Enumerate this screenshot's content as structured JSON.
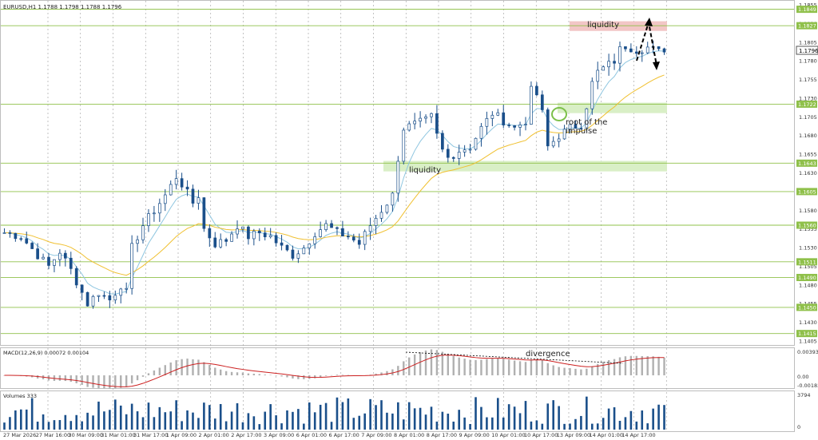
{
  "chart_data": {
    "type": "candlestick",
    "symbol_header": "EURUSD,H1  1.1788 1.1798 1.1788 1.1796",
    "price_axis": {
      "range": [
        1.1405,
        1.1855
      ],
      "ticks": [
        "1.1855",
        "1.1830",
        "1.1805",
        "1.1780",
        "1.1755",
        "1.1730",
        "1.1705",
        "1.1680",
        "1.1655",
        "1.1630",
        "1.1605",
        "1.1580",
        "1.1555",
        "1.1530",
        "1.1505",
        "1.1480",
        "1.1455",
        "1.1430",
        "1.1405"
      ],
      "current_price": "1.1796"
    },
    "levels": [
      {
        "price": 1.1849,
        "label": "1.1849"
      },
      {
        "price": 1.1827,
        "label": "1.1827"
      },
      {
        "price": 1.1722,
        "label": "1.1722"
      },
      {
        "price": 1.1643,
        "label": "1.1643"
      },
      {
        "price": 1.1605,
        "label": "1.1605"
      },
      {
        "price": 1.156,
        "label": "1.1560"
      },
      {
        "price": 1.1511,
        "label": "1.1511"
      },
      {
        "price": 1.149,
        "label": "1.1490"
      },
      {
        "price": 1.145,
        "label": "1.1450"
      },
      {
        "price": 1.1415,
        "label": "1.1415"
      }
    ],
    "time_labels": [
      "27 Mar 2026",
      "27 Mar 16:00",
      "30 Mar 09:00",
      "31 Mar 01:00",
      "31 Mar 17:00",
      "1 Apr 09:00",
      "2 Apr 01:00",
      "2 Apr 17:00",
      "3 Apr 09:00",
      "6 Apr 01:00",
      "6 Apr 17:00",
      "7 Apr 09:00",
      "8 Apr 01:00",
      "8 Apr 17:00",
      "9 Apr 09:00",
      "10 Apr 01:00",
      "10 Apr 17:00",
      "13 Apr 09:00",
      "14 Apr 01:00",
      "14 Apr 17:00"
    ],
    "price_path": [
      [
        0,
        1.155
      ],
      [
        3,
        1.1545
      ],
      [
        6,
        1.152
      ],
      [
        8,
        1.1505
      ],
      [
        10,
        1.1525
      ],
      [
        12,
        1.15
      ],
      [
        14,
        1.147
      ],
      [
        15,
        1.1455
      ],
      [
        17,
        1.147
      ],
      [
        19,
        1.146
      ],
      [
        21,
        1.148
      ],
      [
        22,
        1.147
      ],
      [
        23,
        1.153
      ],
      [
        25,
        1.156
      ],
      [
        27,
        1.158
      ],
      [
        29,
        1.16
      ],
      [
        31,
        1.1625
      ],
      [
        32,
        1.1615
      ],
      [
        34,
        1.159
      ],
      [
        35,
        1.16
      ],
      [
        36,
        1.1555
      ],
      [
        38,
        1.1535
      ],
      [
        40,
        1.154
      ],
      [
        42,
        1.156
      ],
      [
        44,
        1.1545
      ],
      [
        46,
        1.155
      ],
      [
        48,
        1.1545
      ],
      [
        50,
        1.153
      ],
      [
        52,
        1.152
      ],
      [
        54,
        1.153
      ],
      [
        56,
        1.155
      ],
      [
        58,
        1.156
      ],
      [
        60,
        1.155
      ],
      [
        62,
        1.1545
      ],
      [
        64,
        1.1535
      ],
      [
        66,
        1.156
      ],
      [
        68,
        1.158
      ],
      [
        70,
        1.16
      ],
      [
        71,
        1.165
      ],
      [
        72,
        1.169
      ],
      [
        74,
        1.1695
      ],
      [
        76,
        1.17
      ],
      [
        77,
        1.1705
      ],
      [
        78,
        1.168
      ],
      [
        79,
        1.166
      ],
      [
        80,
        1.165
      ],
      [
        82,
        1.166
      ],
      [
        84,
        1.1665
      ],
      [
        86,
        1.169
      ],
      [
        88,
        1.171
      ],
      [
        90,
        1.17
      ],
      [
        92,
        1.169
      ],
      [
        94,
        1.17
      ],
      [
        95,
        1.174
      ],
      [
        96,
        1.1735
      ],
      [
        97,
        1.171
      ],
      [
        98,
        1.1665
      ],
      [
        100,
        1.168
      ],
      [
        102,
        1.169
      ],
      [
        104,
        1.1695
      ],
      [
        105,
        1.172
      ],
      [
        106,
        1.175
      ],
      [
        107,
        1.1765
      ],
      [
        108,
        1.177
      ],
      [
        110,
        1.178
      ],
      [
        111,
        1.1795
      ],
      [
        112,
        1.18
      ],
      [
        114,
        1.1795
      ],
      [
        116,
        1.1798
      ],
      [
        118,
        1.1792
      ],
      [
        119,
        1.1796
      ]
    ],
    "volume_axis": {
      "max": 3794,
      "ticks": [
        "3794",
        "0"
      ]
    },
    "macd": {
      "title": "MACD(12,26,9) 0.00072 0.00104",
      "axis_ticks": [
        "0.00393",
        "0.00",
        "-0.00183"
      ]
    },
    "volumes_title": "Volumes 333",
    "annotations": {
      "liquidity_top": "liquidity",
      "liquidity_mid": "liquidity",
      "root_impulse_line1": "root of the",
      "root_impulse_line2": "impulse",
      "divergence": "divergence"
    },
    "colors": {
      "candles": "#1a4f8a",
      "ma_fast": "#8fc6e0",
      "ma_slow": "#f0c030",
      "levels": "#8fc04a",
      "liquidity_high_zone": "#f2c6c6",
      "liquidity_low_zone": "#d9efc6",
      "macd_signal": "#cc2020",
      "macd_hist": "#b0b0b0",
      "volume_bars": "#1a4f8a"
    }
  }
}
